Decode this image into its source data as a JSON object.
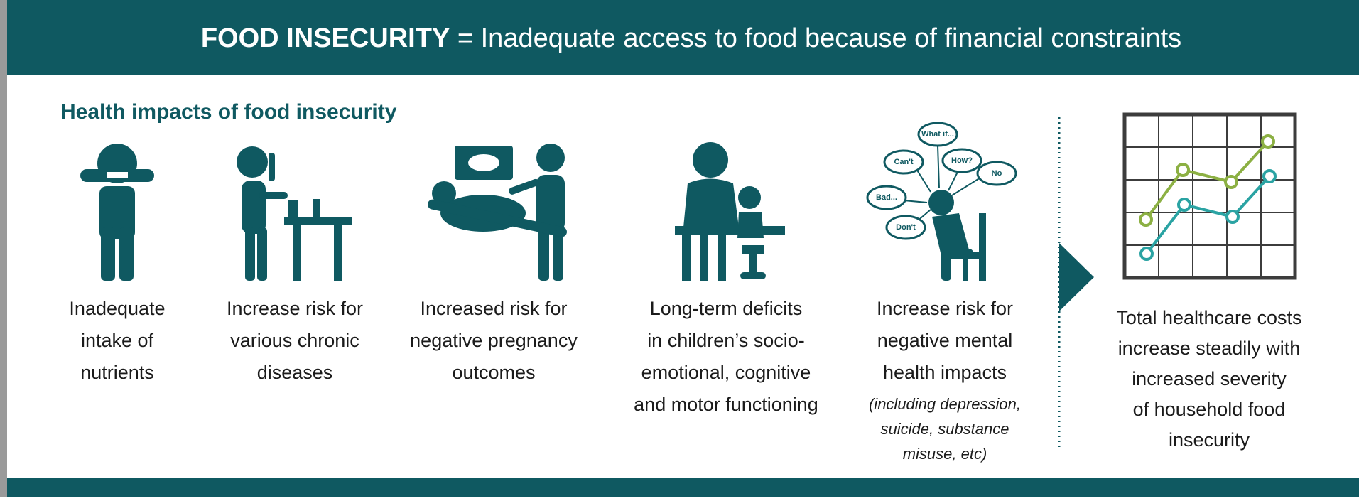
{
  "header": {
    "title_bold": "FOOD INSECURITY",
    "equals": "=",
    "title_rest": "Inadequate access to food because of financial constraints"
  },
  "section_title": "Health impacts of food insecurity",
  "impacts": [
    {
      "lines": [
        "Inadequate",
        "intake of",
        "nutrients"
      ]
    },
    {
      "lines": [
        "Increase risk for",
        "various chronic",
        "diseases"
      ]
    },
    {
      "lines": [
        "Increased risk for",
        "negative pregnancy",
        "outcomes"
      ]
    },
    {
      "lines": [
        "Long-term deficits",
        "in children’s socio-",
        "emotional, cognitive",
        "and motor functioning"
      ]
    },
    {
      "lines": [
        "Increase risk for",
        "negative mental",
        "health impacts"
      ],
      "note_lines": [
        "(including depression,",
        "suicide, substance",
        "misuse, etc)"
      ]
    }
  ],
  "thought_bubbles": [
    "What if...",
    "Can't",
    "How?",
    "No",
    "Bad...",
    "Don't"
  ],
  "outcome": {
    "lines": [
      "Total healthcare costs",
      "increase steadily with",
      "increased severity",
      "of household food",
      "insecurity"
    ]
  }
}
